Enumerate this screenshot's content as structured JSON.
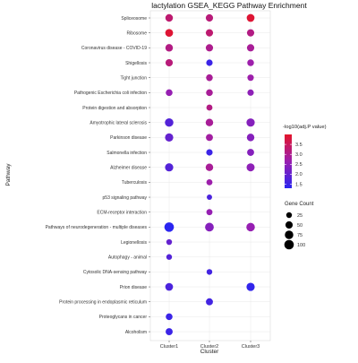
{
  "chart_data": {
    "type": "scatter",
    "title": "lactylation GSEA_KEGG Pathway Enrichment",
    "xlabel": "Cluster",
    "ylabel": "Pathway",
    "categories": [
      "Cluster1",
      "Cluster2",
      "Cluster3"
    ],
    "pathways": [
      "Spliceosome",
      "Ribosome",
      "Coronavirus disease - COVID-19",
      "Shigellosis",
      "Tight junction",
      "Pathogenic Escherichia coli infection",
      "Protein digestion and absorption",
      "Amyotrophic lateral sclerosis",
      "Parkinson disease",
      "Salmonella infection",
      "Alzheimer disease",
      "Tuberculosis",
      "p53 signaling pathway",
      "ECM-receptor interaction",
      "Pathways of neurodegeneration - multiple diseases",
      "Legionellosis",
      "Autophagy - animal",
      "Cytosolic DNA-sensing pathway",
      "Prion disease",
      "Protein processing in endoplasmic reticulum",
      "Proteoglycans in cancer",
      "Alcoholism"
    ],
    "points": [
      {
        "pathway": "Spliceosome",
        "cluster": "Cluster1",
        "pvalue": 3.3,
        "count": 55
      },
      {
        "pathway": "Spliceosome",
        "cluster": "Cluster2",
        "pvalue": 3.2,
        "count": 50
      },
      {
        "pathway": "Spliceosome",
        "cluster": "Cluster3",
        "pvalue": 3.9,
        "count": 60
      },
      {
        "pathway": "Ribosome",
        "cluster": "Cluster1",
        "pvalue": 3.9,
        "count": 60
      },
      {
        "pathway": "Ribosome",
        "cluster": "Cluster2",
        "pvalue": 3.3,
        "count": 50
      },
      {
        "pathway": "Ribosome",
        "cluster": "Cluster3",
        "pvalue": 3.1,
        "count": 50
      },
      {
        "pathway": "Coronavirus disease - COVID-19",
        "cluster": "Cluster1",
        "pvalue": 3.1,
        "count": 55
      },
      {
        "pathway": "Coronavirus disease - COVID-19",
        "cluster": "Cluster2",
        "pvalue": 3.0,
        "count": 50
      },
      {
        "pathway": "Coronavirus disease - COVID-19",
        "cluster": "Cluster3",
        "pvalue": 2.9,
        "count": 50
      },
      {
        "pathway": "Shigellosis",
        "cluster": "Cluster1",
        "pvalue": 3.2,
        "count": 50
      },
      {
        "pathway": "Shigellosis",
        "cluster": "Cluster2",
        "pvalue": 1.5,
        "count": 35
      },
      {
        "pathway": "Shigellosis",
        "cluster": "Cluster3",
        "pvalue": 2.7,
        "count": 40
      },
      {
        "pathway": "Tight junction",
        "cluster": "Cluster2",
        "pvalue": 2.9,
        "count": 40
      },
      {
        "pathway": "Tight junction",
        "cluster": "Cluster3",
        "pvalue": 2.7,
        "count": 35
      },
      {
        "pathway": "Pathogenic Escherichia coli infection",
        "cluster": "Cluster1",
        "pvalue": 2.6,
        "count": 40
      },
      {
        "pathway": "Pathogenic Escherichia coli infection",
        "cluster": "Cluster2",
        "pvalue": 2.9,
        "count": 40
      },
      {
        "pathway": "Pathogenic Escherichia coli infection",
        "cluster": "Cluster3",
        "pvalue": 2.5,
        "count": 35
      },
      {
        "pathway": "Protein digestion and absorption",
        "cluster": "Cluster2",
        "pvalue": 3.1,
        "count": 30
      },
      {
        "pathway": "Amyotrophic lateral sclerosis",
        "cluster": "Cluster1",
        "pvalue": 1.8,
        "count": 75
      },
      {
        "pathway": "Amyotrophic lateral sclerosis",
        "cluster": "Cluster2",
        "pvalue": 2.9,
        "count": 55
      },
      {
        "pathway": "Amyotrophic lateral sclerosis",
        "cluster": "Cluster3",
        "pvalue": 2.4,
        "count": 70
      },
      {
        "pathway": "Parkinson disease",
        "cluster": "Cluster1",
        "pvalue": 2.0,
        "count": 70
      },
      {
        "pathway": "Parkinson disease",
        "cluster": "Cluster2",
        "pvalue": 2.8,
        "count": 45
      },
      {
        "pathway": "Parkinson disease",
        "cluster": "Cluster3",
        "pvalue": 2.4,
        "count": 55
      },
      {
        "pathway": "Salmonella infection",
        "cluster": "Cluster2",
        "pvalue": 1.5,
        "count": 35
      },
      {
        "pathway": "Salmonella infection",
        "cluster": "Cluster3",
        "pvalue": 2.4,
        "count": 45
      },
      {
        "pathway": "Alzheimer disease",
        "cluster": "Cluster1",
        "pvalue": 1.8,
        "count": 70
      },
      {
        "pathway": "Alzheimer disease",
        "cluster": "Cluster2",
        "pvalue": 2.9,
        "count": 55
      },
      {
        "pathway": "Alzheimer disease",
        "cluster": "Cluster3",
        "pvalue": 2.5,
        "count": 65
      },
      {
        "pathway": "Tuberculosis",
        "cluster": "Cluster2",
        "pvalue": 2.7,
        "count": 30
      },
      {
        "pathway": "p53 signaling pathway",
        "cluster": "Cluster2",
        "pvalue": 1.7,
        "count": 20
      },
      {
        "pathway": "ECM-receptor interaction",
        "cluster": "Cluster2",
        "pvalue": 2.6,
        "count": 30
      },
      {
        "pathway": "Pathways of neurodegeneration - multiple diseases",
        "cluster": "Cluster1",
        "pvalue": 1.3,
        "count": 100
      },
      {
        "pathway": "Pathways of neurodegeneration - multiple diseases",
        "cluster": "Cluster2",
        "pvalue": 2.4,
        "count": 80
      },
      {
        "pathway": "Pathways of neurodegeneration - multiple diseases",
        "cluster": "Cluster3",
        "pvalue": 2.6,
        "count": 75
      },
      {
        "pathway": "Legionellosis",
        "cluster": "Cluster1",
        "pvalue": 2.0,
        "count": 25
      },
      {
        "pathway": "Autophagy - animal",
        "cluster": "Cluster1",
        "pvalue": 1.8,
        "count": 25
      },
      {
        "pathway": "Cytosolic DNA-sensing pathway",
        "cluster": "Cluster2",
        "pvalue": 1.6,
        "count": 25
      },
      {
        "pathway": "Prion disease",
        "cluster": "Cluster1",
        "pvalue": 1.7,
        "count": 60
      },
      {
        "pathway": "Prion disease",
        "cluster": "Cluster3",
        "pvalue": 1.4,
        "count": 70
      },
      {
        "pathway": "Protein processing in endoplasmic reticulum",
        "cluster": "Cluster2",
        "pvalue": 1.6,
        "count": 45
      },
      {
        "pathway": "Proteoglycans in cancer",
        "cluster": "Cluster1",
        "pvalue": 1.5,
        "count": 40
      },
      {
        "pathway": "Alcoholism",
        "cluster": "Cluster1",
        "pvalue": 1.5,
        "count": 45
      }
    ],
    "color_legend": {
      "title": "-log10(adj.P value)",
      "ticks": [
        "3.5",
        "3.0",
        "2.5",
        "2.0",
        "1.5"
      ],
      "domain": [
        1.3,
        4.0
      ],
      "low_color": "#2a25f0",
      "high_color": "#e3142a"
    },
    "size_legend": {
      "title": "Gene Count",
      "ticks": [
        "25",
        "50",
        "75",
        "100"
      ],
      "values": [
        25,
        50,
        75,
        100
      ]
    },
    "grid": true,
    "legend_placement": "right"
  }
}
